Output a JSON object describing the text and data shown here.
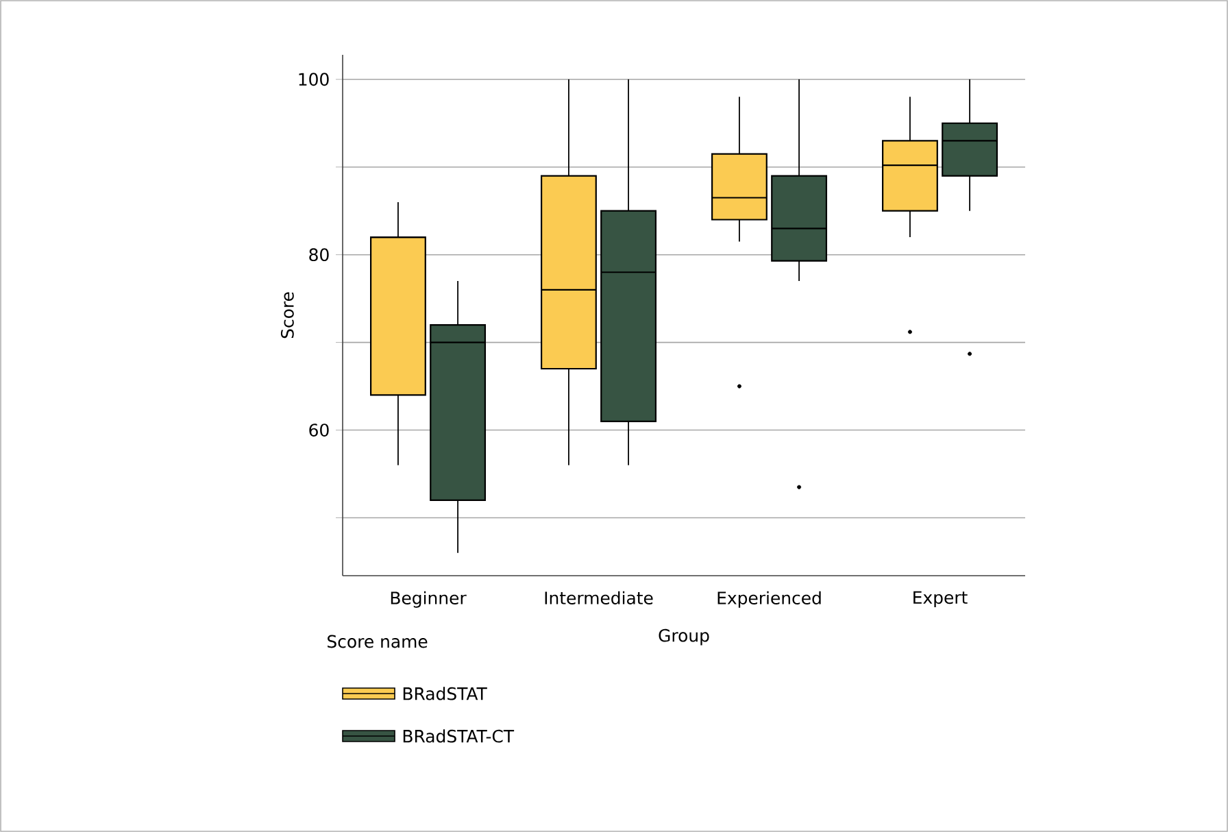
{
  "chart_data": {
    "type": "box",
    "xlabel": "Group",
    "ylabel": "Score",
    "legend_title": "Score name",
    "legend": "bottom",
    "categories": [
      "Beginner",
      "Intermediate",
      "Experienced",
      "Expert"
    ],
    "ylim": [
      43.4,
      102.8
    ],
    "yticks": [
      {
        "value": 50,
        "label": null
      },
      60,
      {
        "value": 70,
        "label": null
      },
      80,
      {
        "value": 90,
        "label": null
      },
      100
    ],
    "grid": "y",
    "series": [
      {
        "name": "BRadSTAT",
        "color": "#fbcb52",
        "boxes": [
          {
            "low": 56,
            "q1": 64,
            "median": 82,
            "q3": 82,
            "high": 86
          },
          {
            "low": 56,
            "q1": 67,
            "median": 76,
            "q3": 89,
            "high": 100
          },
          {
            "low": 81.5,
            "q1": 84,
            "median": 86.5,
            "q3": 91.5,
            "high": 98,
            "outliers": [
              65
            ]
          },
          {
            "low": 82,
            "q1": 85,
            "median": 90.2,
            "q3": 93,
            "high": 98,
            "outliers": [
              71.2
            ]
          }
        ]
      },
      {
        "name": "BRadSTAT-CT",
        "color": "#375443",
        "boxes": [
          {
            "low": 46,
            "q1": 52,
            "median": 70,
            "q3": 72,
            "high": 77
          },
          {
            "low": 56,
            "q1": 61,
            "median": 78,
            "q3": 85,
            "high": 100
          },
          {
            "low": 77,
            "q1": 79.3,
            "median": 83,
            "q3": 89,
            "high": 100,
            "outliers": [
              53.5
            ]
          },
          {
            "low": 85,
            "q1": 89,
            "median": 93,
            "q3": 95,
            "high": 100,
            "outliers": [
              68.7
            ]
          }
        ]
      }
    ]
  }
}
